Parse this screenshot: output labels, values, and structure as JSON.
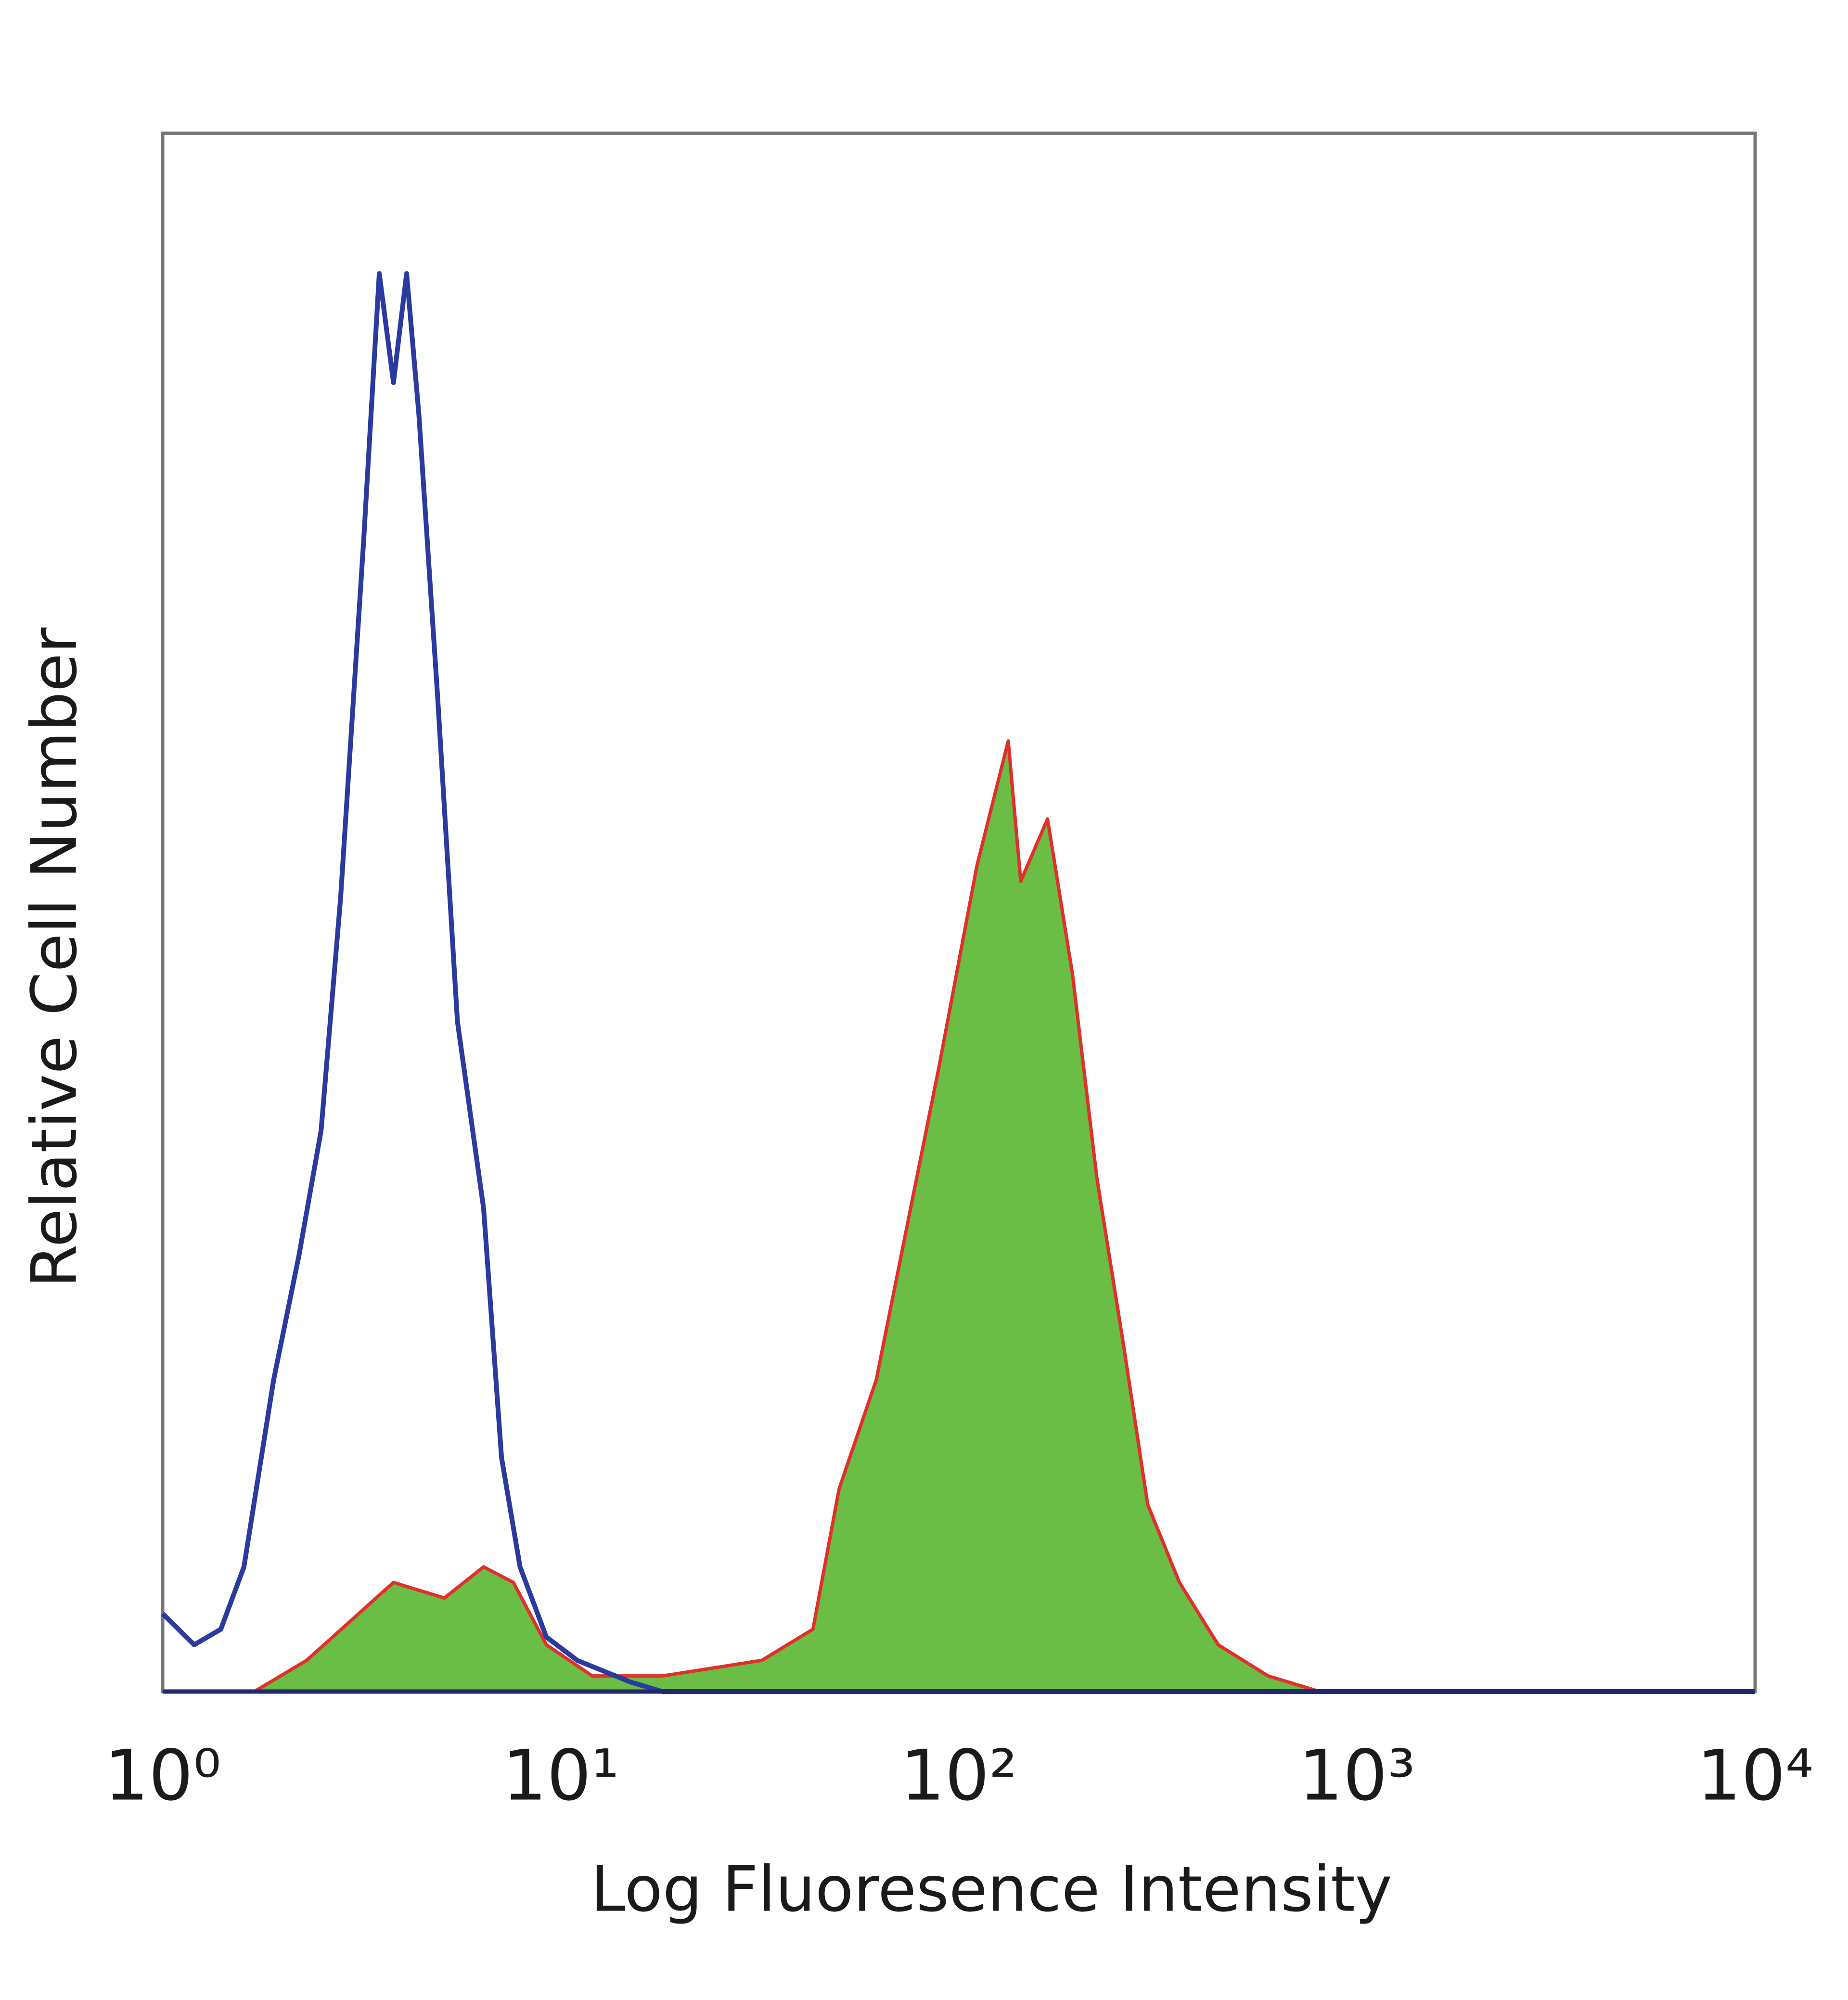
{
  "chart_data": {
    "type": "histogram-overlay",
    "x_label": "Log Fluoresence Intensity",
    "y_label": "Relative Cell Number",
    "xscale": "log",
    "xlim": [
      1,
      10000
    ],
    "ylim": [
      0,
      100
    ],
    "xticks": [
      {
        "value": 1,
        "label": "10⁰"
      },
      {
        "value": 10,
        "label": "10¹"
      },
      {
        "value": 100,
        "label": "10²"
      },
      {
        "value": 1000,
        "label": "10³"
      },
      {
        "value": 10000,
        "label": "10⁴"
      }
    ],
    "series": [
      {
        "color": "#6abd45",
        "edge_color": "#e0302a",
        "filled": true,
        "x": [
          1.7,
          2.3,
          3.8,
          5.1,
          6.4,
          7.6,
          9.2,
          12,
          18,
          32,
          43,
          50,
          62,
          77,
          89,
          111,
          133,
          143,
          167,
          193,
          222,
          260,
          298,
          358,
          448,
          598,
          805
        ],
        "values": [
          0,
          2,
          7,
          6,
          8,
          7,
          3,
          1,
          1,
          2,
          4,
          13,
          20,
          32,
          40,
          53,
          61,
          52,
          56,
          46,
          33,
          22,
          12,
          7,
          3,
          1,
          0
        ]
      },
      {
        "color": "#2b3a9e",
        "filled": false,
        "x": [
          1,
          1.2,
          1.4,
          1.6,
          1.9,
          2.2,
          2.5,
          2.8,
          3.2,
          3.5,
          3.8,
          4.1,
          4.4,
          4.9,
          5.5,
          6.4,
          7.1,
          7.9,
          9.2,
          11,
          15,
          18,
          100,
          1000,
          10000
        ],
        "values": [
          5,
          3,
          4,
          8,
          20,
          28,
          36,
          51,
          74,
          91,
          84,
          91,
          82,
          64,
          43,
          31,
          15,
          8,
          3.5,
          2,
          0.6,
          0,
          0,
          0,
          0
        ]
      }
    ]
  }
}
